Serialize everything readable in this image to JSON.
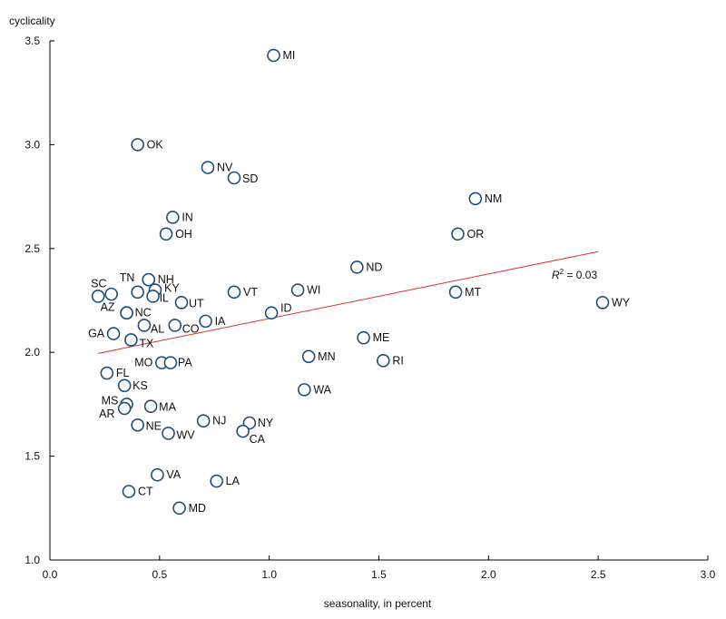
{
  "chart_data": {
    "type": "scatter",
    "ylabel": "cyclicality",
    "xlabel": "seasonality, in percent",
    "xlim": [
      0,
      3
    ],
    "ylim": [
      1,
      3.5
    ],
    "xticks": [
      "0.0",
      "0.5",
      "1.0",
      "1.5",
      "2.0",
      "2.5",
      "3.0"
    ],
    "yticks": [
      "1.0",
      "1.5",
      "2.0",
      "2.5",
      "3.0",
      "3.5"
    ],
    "grid": false,
    "marker_color": "#1f4e79",
    "trend_color": "#e03030",
    "annotation": {
      "italic": "R",
      "sup": "2",
      "rest": " = 0.03"
    },
    "trendline": {
      "x": [
        0.22,
        2.5
      ],
      "y": [
        1.995,
        2.485
      ]
    },
    "points": [
      {
        "label": "MI",
        "x": 1.02,
        "y": 3.43
      },
      {
        "label": "OK",
        "x": 0.4,
        "y": 3.0
      },
      {
        "label": "NV",
        "x": 0.72,
        "y": 2.89
      },
      {
        "label": "SD",
        "x": 0.84,
        "y": 2.84
      },
      {
        "label": "NM",
        "x": 1.94,
        "y": 2.74
      },
      {
        "label": "IN",
        "x": 0.56,
        "y": 2.65
      },
      {
        "label": "OH",
        "x": 0.53,
        "y": 2.57
      },
      {
        "label": "OR",
        "x": 1.86,
        "y": 2.57
      },
      {
        "label": "ND",
        "x": 1.4,
        "y": 2.41
      },
      {
        "label": "TN",
        "x": 0.45,
        "y": 2.35
      },
      {
        "label": "NH",
        "x": 0.45,
        "y": 2.35
      },
      {
        "label": "KY",
        "x": 0.48,
        "y": 2.3
      },
      {
        "label": "SC",
        "x": 0.22,
        "y": 2.27
      },
      {
        "label": "",
        "x": 0.28,
        "y": 2.28
      },
      {
        "label": "",
        "x": 0.4,
        "y": 2.29
      },
      {
        "label": "IL",
        "x": 0.47,
        "y": 2.27
      },
      {
        "label": "UT",
        "x": 0.6,
        "y": 2.24
      },
      {
        "label": "VT",
        "x": 0.84,
        "y": 2.29
      },
      {
        "label": "WI",
        "x": 1.13,
        "y": 2.3
      },
      {
        "label": "MT",
        "x": 1.85,
        "y": 2.29
      },
      {
        "label": "WY",
        "x": 2.52,
        "y": 2.24
      },
      {
        "label": "ID",
        "x": 1.01,
        "y": 2.19
      },
      {
        "label": "AZ",
        "x": 0.35,
        "y": 2.19
      },
      {
        "label": "NC",
        "x": 0.35,
        "y": 2.19
      },
      {
        "label": "AL",
        "x": 0.43,
        "y": 2.13
      },
      {
        "label": "CO",
        "x": 0.57,
        "y": 2.13
      },
      {
        "label": "IA",
        "x": 0.71,
        "y": 2.15
      },
      {
        "label": "GA",
        "x": 0.29,
        "y": 2.09
      },
      {
        "label": "TX",
        "x": 0.37,
        "y": 2.06
      },
      {
        "label": "ME",
        "x": 1.43,
        "y": 2.07
      },
      {
        "label": "MN",
        "x": 1.18,
        "y": 1.98
      },
      {
        "label": "RI",
        "x": 1.52,
        "y": 1.96
      },
      {
        "label": "MO",
        "x": 0.51,
        "y": 1.95
      },
      {
        "label": "PA",
        "x": 0.55,
        "y": 1.95
      },
      {
        "label": "FL",
        "x": 0.26,
        "y": 1.9
      },
      {
        "label": "KS",
        "x": 0.34,
        "y": 1.84
      },
      {
        "label": "WA",
        "x": 1.16,
        "y": 1.82
      },
      {
        "label": "MS",
        "x": 0.35,
        "y": 1.75
      },
      {
        "label": "AR",
        "x": 0.34,
        "y": 1.73
      },
      {
        "label": "MA",
        "x": 0.46,
        "y": 1.74
      },
      {
        "label": "NE",
        "x": 0.4,
        "y": 1.65
      },
      {
        "label": "NJ",
        "x": 0.7,
        "y": 1.67
      },
      {
        "label": "NY",
        "x": 0.91,
        "y": 1.66
      },
      {
        "label": "CA",
        "x": 0.88,
        "y": 1.62
      },
      {
        "label": "WV",
        "x": 0.54,
        "y": 1.61
      },
      {
        "label": "VA",
        "x": 0.49,
        "y": 1.41
      },
      {
        "label": "LA",
        "x": 0.76,
        "y": 1.38
      },
      {
        "label": "CT",
        "x": 0.36,
        "y": 1.33
      },
      {
        "label": "MD",
        "x": 0.59,
        "y": 1.25
      }
    ]
  }
}
